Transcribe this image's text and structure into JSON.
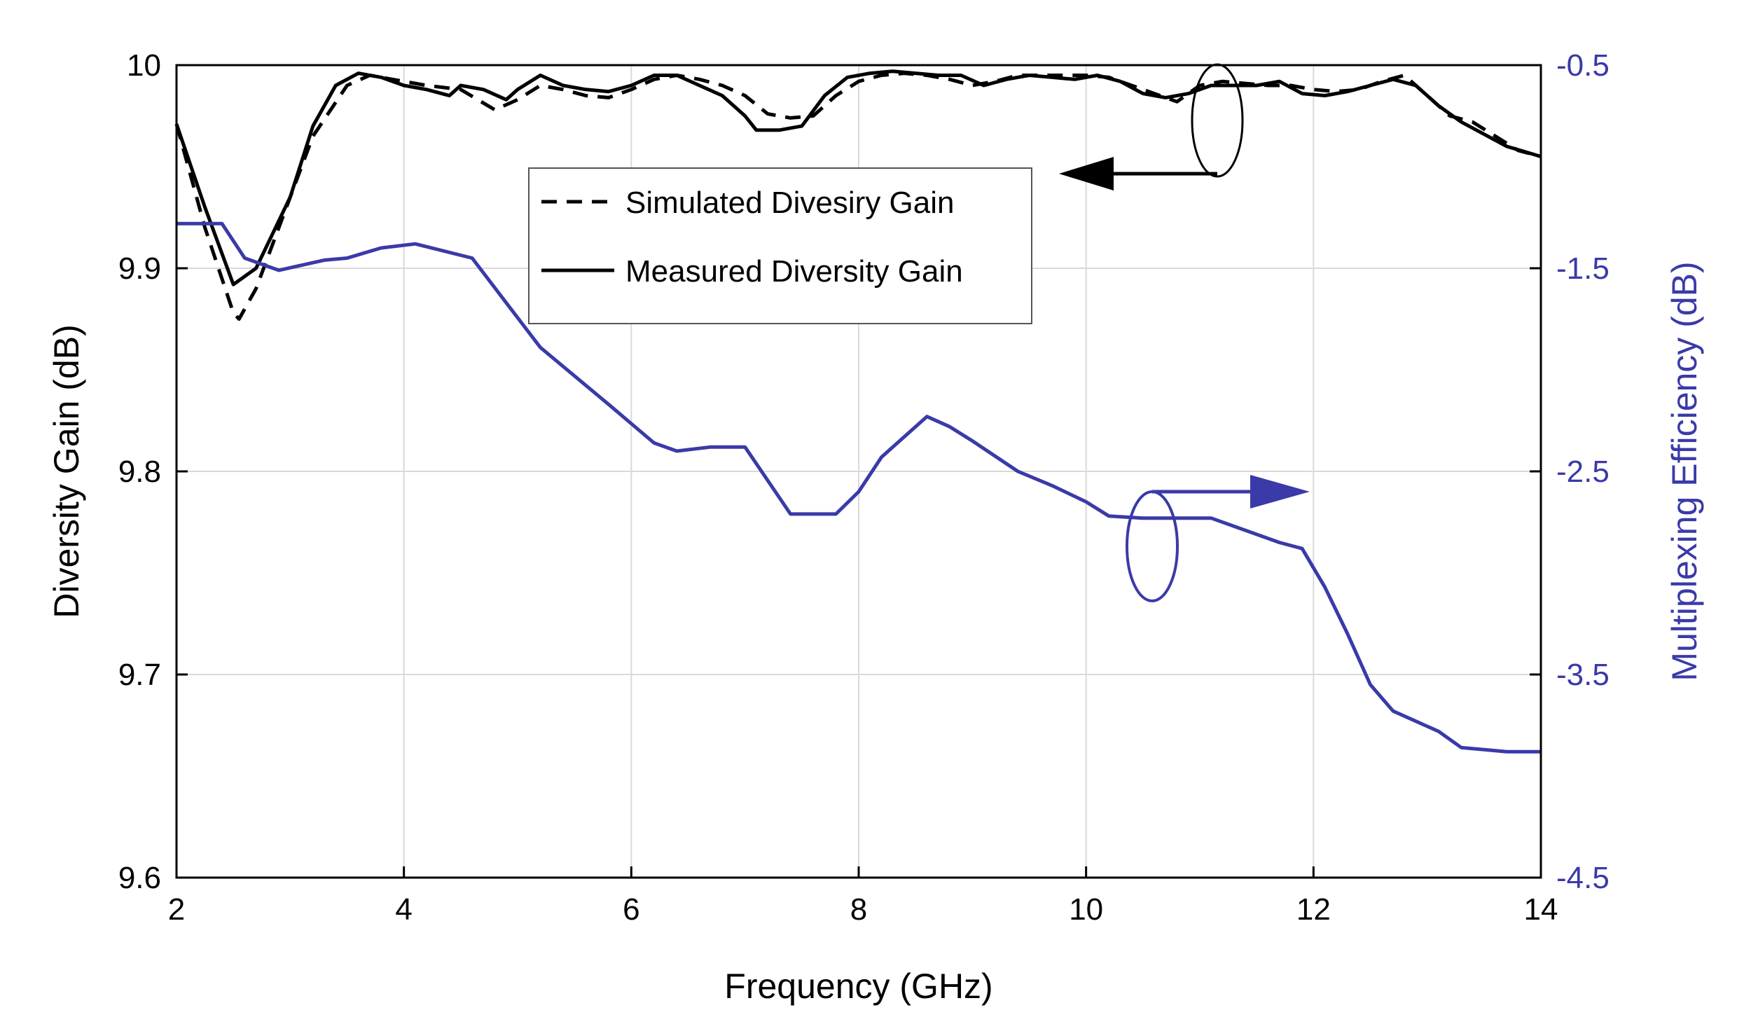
{
  "chart_data": {
    "type": "line",
    "title": "",
    "xlabel": "Frequency (GHz)",
    "ylabel": "Diversity Gain (dB)",
    "y2label": "Multiplexing Efficiency (dB)",
    "xlim": [
      2,
      14
    ],
    "ylim": [
      9.6,
      10.0
    ],
    "y2lim": [
      -4.5,
      -0.5
    ],
    "xticks": [
      "2",
      "4",
      "6",
      "8",
      "10",
      "12",
      "14"
    ],
    "yticks": [
      "9.6",
      "9.7",
      "9.8",
      "9.9",
      "10"
    ],
    "y2ticks": [
      "-4.5",
      "-3.5",
      "-2.5",
      "-1.5",
      "-0.5"
    ],
    "grid": true,
    "legend_position": "top-center",
    "colors": {
      "black": "#000000",
      "blue": "#3a3aa8",
      "grid": "#d9d9d9"
    },
    "series": [
      {
        "name": "Simulated Divesiry Gain",
        "axis": "left",
        "style": "dashed",
        "color": "#000000",
        "x": [
          2,
          2.25,
          2.5,
          2.55,
          2.7,
          2.9,
          3.2,
          3.5,
          3.7,
          3.9,
          4.2,
          4.5,
          4.8,
          5.0,
          5.2,
          5.4,
          5.6,
          5.8,
          6.0,
          6.2,
          6.4,
          6.6,
          6.8,
          7.0,
          7.2,
          7.4,
          7.6,
          7.8,
          8.0,
          8.2,
          8.4,
          8.6,
          8.8,
          9.0,
          9.2,
          9.4,
          9.6,
          9.8,
          10.0,
          10.2,
          10.4,
          10.6,
          10.8,
          11.0,
          11.2,
          11.4,
          11.6,
          11.8,
          12.0,
          12.2,
          12.4,
          12.6,
          12.8,
          13.0,
          13.2,
          13.4,
          13.6,
          13.8,
          14.0
        ],
        "y": [
          9.971,
          9.92,
          9.878,
          9.875,
          9.89,
          9.92,
          9.965,
          9.99,
          9.995,
          9.993,
          9.99,
          9.988,
          9.978,
          9.983,
          9.99,
          9.988,
          9.985,
          9.984,
          9.988,
          9.993,
          9.995,
          9.993,
          9.99,
          9.985,
          9.976,
          9.974,
          9.975,
          9.985,
          9.992,
          9.995,
          9.996,
          9.995,
          9.993,
          9.99,
          9.992,
          9.995,
          9.995,
          9.995,
          9.995,
          9.994,
          9.99,
          9.986,
          9.982,
          9.99,
          9.992,
          9.991,
          9.99,
          9.99,
          9.988,
          9.987,
          9.988,
          9.992,
          9.995,
          9.985,
          9.975,
          9.972,
          9.965,
          9.958,
          9.955
        ]
      },
      {
        "name": "Measured Diversity Gain",
        "axis": "left",
        "style": "solid",
        "color": "#000000",
        "x": [
          2,
          2.25,
          2.5,
          2.7,
          3.0,
          3.2,
          3.4,
          3.6,
          3.8,
          4.0,
          4.2,
          4.4,
          4.5,
          4.7,
          4.9,
          5.0,
          5.2,
          5.4,
          5.6,
          5.8,
          6.0,
          6.2,
          6.4,
          6.6,
          6.8,
          7.0,
          7.1,
          7.3,
          7.5,
          7.7,
          7.9,
          8.1,
          8.3,
          8.5,
          8.7,
          8.9,
          9.1,
          9.3,
          9.5,
          9.7,
          9.9,
          10.1,
          10.3,
          10.5,
          10.7,
          10.9,
          11.1,
          11.3,
          11.5,
          11.7,
          11.9,
          12.1,
          12.3,
          12.5,
          12.7,
          12.9,
          13.1,
          13.3,
          13.5,
          13.7,
          14.0
        ],
        "y": [
          9.971,
          9.93,
          9.892,
          9.9,
          9.935,
          9.97,
          9.99,
          9.996,
          9.994,
          9.99,
          9.988,
          9.985,
          9.99,
          9.988,
          9.983,
          9.988,
          9.995,
          9.99,
          9.988,
          9.987,
          9.99,
          9.995,
          9.995,
          9.99,
          9.985,
          9.975,
          9.968,
          9.968,
          9.97,
          9.985,
          9.994,
          9.996,
          9.997,
          9.996,
          9.995,
          9.995,
          9.99,
          9.993,
          9.995,
          9.994,
          9.993,
          9.995,
          9.992,
          9.986,
          9.984,
          9.986,
          9.99,
          9.99,
          9.99,
          9.992,
          9.986,
          9.985,
          9.987,
          9.99,
          9.993,
          9.99,
          9.98,
          9.972,
          9.966,
          9.96,
          9.955
        ]
      },
      {
        "name": "Multiplexing Efficiency",
        "axis": "right",
        "style": "solid",
        "color": "#3a3aa8",
        "x": [
          2,
          2.4,
          2.6,
          2.9,
          3.3,
          3.5,
          3.8,
          4.1,
          4.6,
          5.2,
          5.5,
          5.8,
          6.2,
          6.4,
          6.7,
          7.0,
          7.4,
          7.8,
          8.0,
          8.2,
          8.6,
          8.8,
          9.0,
          9.4,
          9.7,
          10.0,
          10.2,
          10.5,
          10.9,
          11.1,
          11.4,
          11.7,
          11.9,
          12.1,
          12.3,
          12.5,
          12.7,
          12.9,
          13.1,
          13.3,
          13.5,
          13.7,
          13.9,
          14.0
        ],
        "y": [
          -1.28,
          -1.28,
          -1.45,
          -1.51,
          -1.46,
          -1.45,
          -1.4,
          -1.38,
          -1.45,
          -1.89,
          -2.03,
          -2.17,
          -2.36,
          -2.4,
          -2.38,
          -2.38,
          -2.71,
          -2.71,
          -2.6,
          -2.43,
          -2.23,
          -2.28,
          -2.35,
          -2.5,
          -2.57,
          -2.65,
          -2.72,
          -2.73,
          -2.73,
          -2.73,
          -2.79,
          -2.85,
          -2.88,
          -3.07,
          -3.3,
          -3.55,
          -3.68,
          -3.73,
          -3.78,
          -3.86,
          -3.87,
          -3.88,
          -3.88,
          -3.88
        ]
      }
    ],
    "annotations": [
      {
        "target": "Simulated Divesiry Gain / Measured Diversity Gain",
        "marker": "ellipse",
        "arrow": "left",
        "axis": "left"
      },
      {
        "target": "Multiplexing Efficiency",
        "marker": "ellipse",
        "arrow": "right",
        "axis": "right"
      }
    ]
  }
}
